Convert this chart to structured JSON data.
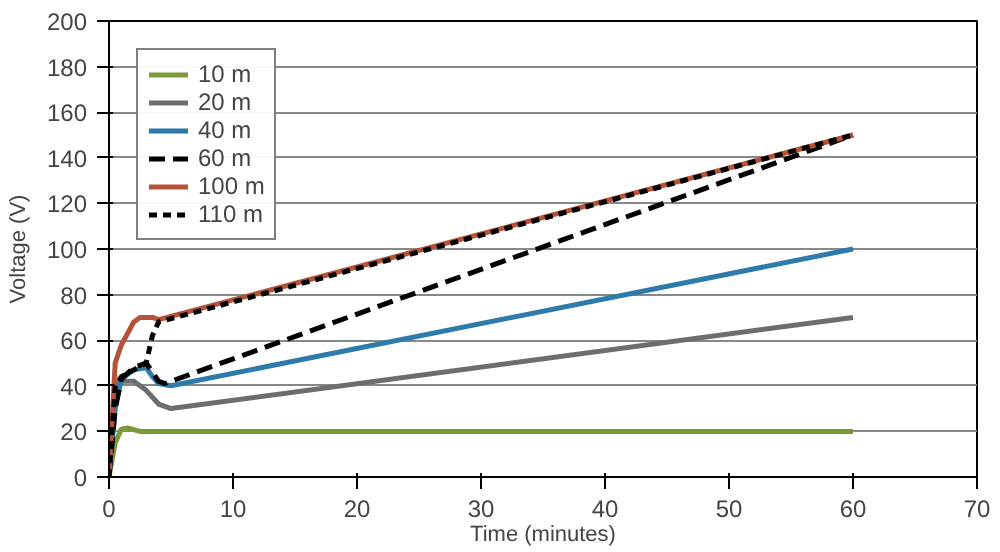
{
  "chart_data": {
    "type": "line",
    "xlabel": "Time (minutes)",
    "ylabel": "Voltage (V)",
    "xlim": [
      0,
      70
    ],
    "ylim": [
      0,
      200
    ],
    "xticks": [
      0,
      10,
      20,
      30,
      40,
      50,
      60,
      70
    ],
    "yticks": [
      0,
      20,
      40,
      60,
      80,
      100,
      120,
      140,
      160,
      180,
      200
    ],
    "grid": "y",
    "legend": "top left",
    "series": [
      {
        "name": "10 m",
        "color": "#7a9a3a",
        "x": [
          0,
          0.5,
          1,
          1.5,
          2.5,
          60
        ],
        "values": [
          0,
          15,
          21,
          21.5,
          20,
          20
        ]
      },
      {
        "name": "20 m",
        "color": "#6d6d6d",
        "x": [
          0,
          0.4,
          0.8,
          2,
          3,
          4,
          5,
          60
        ],
        "values": [
          0,
          30,
          42,
          42,
          38,
          32,
          30,
          70
        ]
      },
      {
        "name": "40 m",
        "color": "#2e7bab",
        "x": [
          0,
          0.5,
          1,
          2,
          3,
          3.5,
          4,
          5,
          60
        ],
        "values": [
          0,
          30,
          43,
          47,
          48,
          44,
          41,
          40,
          100
        ]
      },
      {
        "name": "60 m",
        "color": "#000000",
        "line_style": "dashed",
        "x": [
          0,
          0.5,
          1,
          2,
          3,
          3.5,
          4,
          4.5,
          60
        ],
        "values": [
          0,
          30,
          43,
          48,
          50,
          46,
          42,
          41,
          150
        ]
      },
      {
        "name": "100 m",
        "color": "#b5533a",
        "x": [
          0,
          0.5,
          1,
          2,
          2.5,
          3.5,
          4,
          60
        ],
        "values": [
          0,
          50,
          58,
          68,
          70,
          70,
          69,
          150
        ]
      },
      {
        "name": "110 m",
        "color": "#000000",
        "line_style": "dotted",
        "x": [
          0,
          0.5,
          1,
          2,
          3,
          3.5,
          4,
          60
        ],
        "values": [
          0,
          40,
          44,
          47,
          50,
          62,
          68,
          150
        ]
      }
    ]
  }
}
